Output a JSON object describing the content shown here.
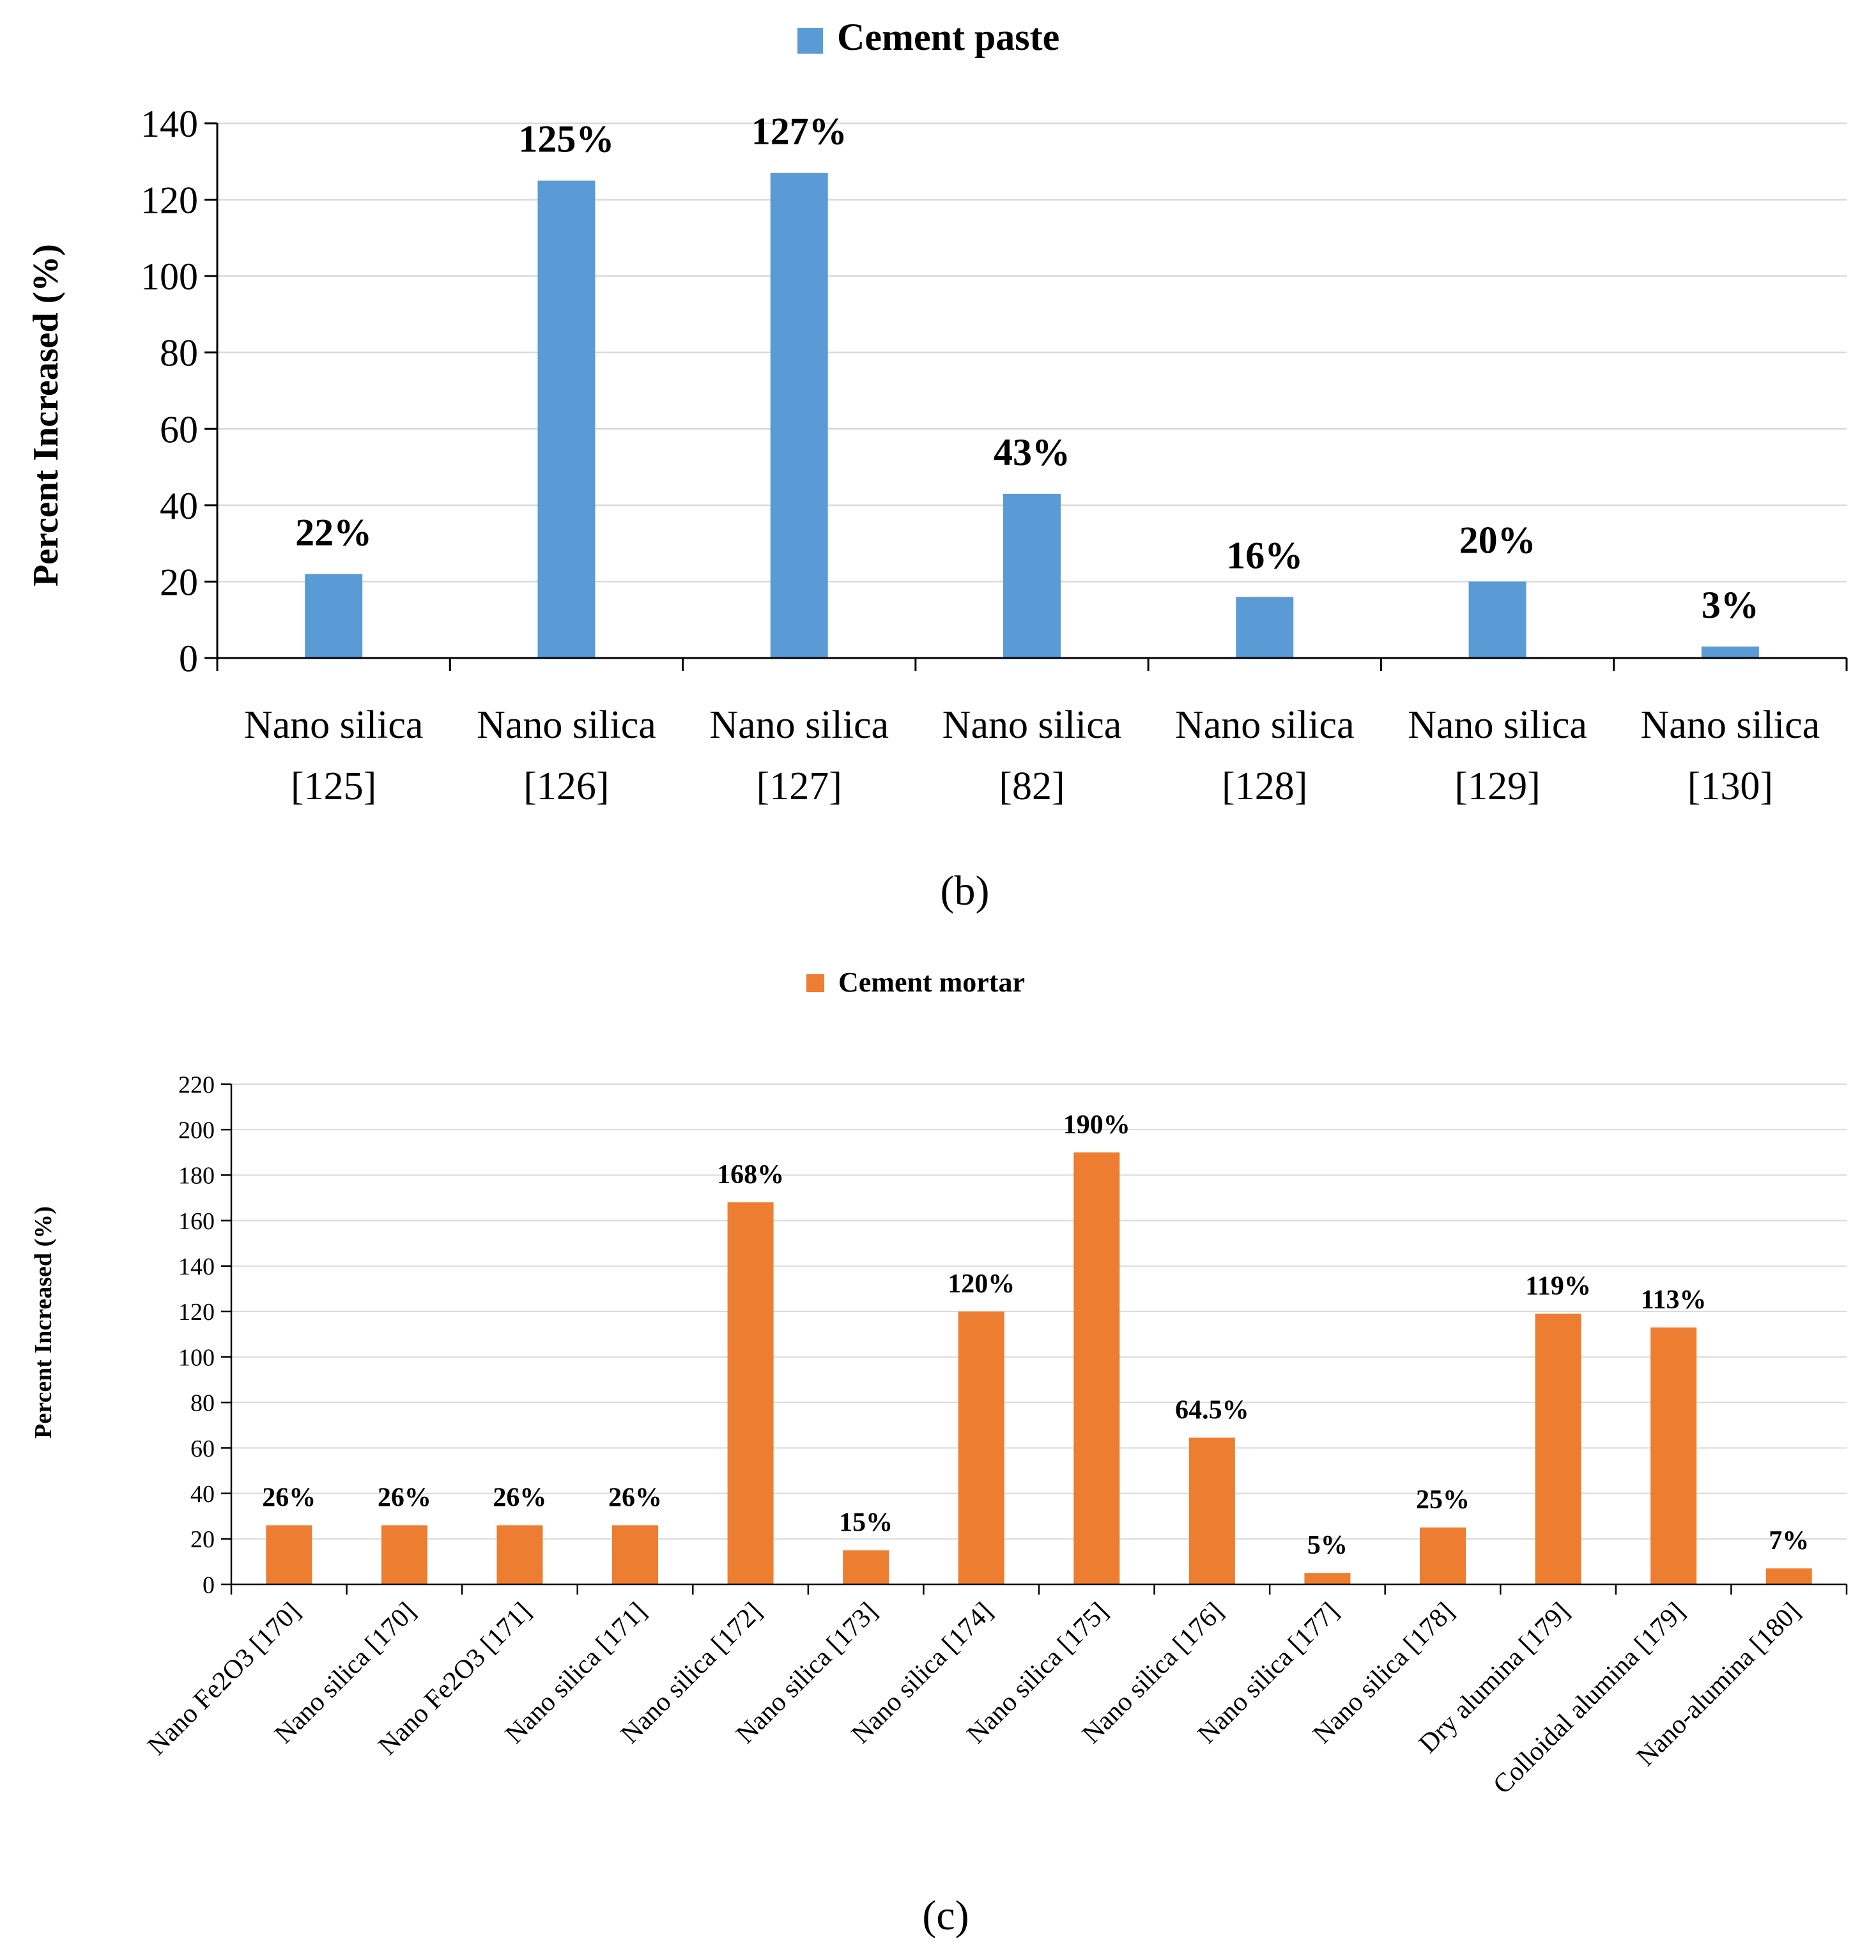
{
  "chart_data": [
    {
      "type": "bar",
      "legend": "Cement paste",
      "color": "#5B9BD5",
      "ylabel": "Percent Increased (%)",
      "ylim": [
        0,
        140
      ],
      "yticks": [
        "0",
        "20",
        "40",
        "60",
        "80",
        "100",
        "120",
        "140"
      ],
      "categories": [
        [
          "Nano silica",
          "[125]"
        ],
        [
          "Nano silica",
          "[126]"
        ],
        [
          "Nano silica",
          "[127]"
        ],
        [
          "Nano silica",
          "[82]"
        ],
        [
          "Nano silica",
          "[128]"
        ],
        [
          "Nano silica",
          "[129]"
        ],
        [
          "Nano silica",
          "[130]"
        ]
      ],
      "values": [
        22,
        125,
        127,
        43,
        16,
        20,
        3
      ],
      "labels": [
        "22%",
        "125%",
        "127%",
        "43%",
        "16%",
        "20%",
        "3%"
      ],
      "caption": "(b)"
    },
    {
      "type": "bar",
      "legend": "Cement mortar",
      "color": "#ED7D31",
      "ylabel": "Percent Increased (%)",
      "ylim": [
        0,
        220
      ],
      "yticks": [
        "0",
        "20",
        "40",
        "60",
        "80",
        "100",
        "120",
        "140",
        "160",
        "180",
        "200",
        "220"
      ],
      "categories": [
        "Nano Fe2O3 [170]",
        "Nano silica [170]",
        "Nano Fe2O3 [171]",
        "Nano silica [171]",
        "Nano silica [172]",
        "Nano silica [173]",
        "Nano silica [174]",
        "Nano silica [175]",
        "Nano silica [176]",
        "Nano silica [177]",
        "Nano silica [178]",
        "Dry alumina [179]",
        "Colloidal alumina [179]",
        "Nano-alumina [180]"
      ],
      "values": [
        26,
        26,
        26,
        26,
        168,
        15,
        120,
        190,
        64.5,
        5,
        25,
        119,
        113,
        7
      ],
      "labels": [
        "26%",
        "26%",
        "26%",
        "26%",
        "168%",
        "15%",
        "120%",
        "190%",
        "64.5%",
        "5%",
        "25%",
        "119%",
        "113%",
        "7%"
      ],
      "caption": "(c)"
    }
  ]
}
